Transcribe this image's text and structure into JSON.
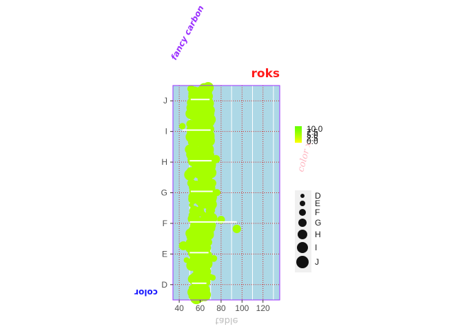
{
  "chart_data": {
    "type": "scatter",
    "title": "roks",
    "xlabel": "table",
    "ylabel": "color",
    "top_label": "fancy carbon",
    "x_ticks": [
      "40",
      "60",
      "80",
      "100",
      "120"
    ],
    "x_tick_values": [
      40,
      60,
      80,
      100,
      120
    ],
    "xlim": [
      34,
      136
    ],
    "categories": [
      "D",
      "E",
      "F",
      "G",
      "H",
      "I",
      "J"
    ],
    "grid": true,
    "panel_background": "#add8e6",
    "panel_border": "#9b30ff",
    "point_color": "#a6ff00",
    "series": [
      {
        "category": "D",
        "min": 52,
        "max": 66,
        "median": 57,
        "outliers": [
          70,
          72,
          68
        ],
        "range_segments": [
          [
            52,
            66
          ]
        ]
      },
      {
        "category": "E",
        "min": 50,
        "max": 68,
        "median": 57,
        "outliers": [
          44,
          47,
          73
        ],
        "range_segments": [
          [
            50,
            68
          ]
        ]
      },
      {
        "category": "F",
        "min": 50,
        "max": 72,
        "median": 57,
        "outliers": [
          80,
          95
        ],
        "range_segments": [
          [
            50,
            95
          ]
        ]
      },
      {
        "category": "G",
        "min": 51,
        "max": 72,
        "median": 57,
        "outliers": [
          76
        ],
        "range_segments": [
          [
            51,
            72
          ]
        ]
      },
      {
        "category": "H",
        "min": 50,
        "max": 71,
        "median": 57,
        "outliers": [
          75
        ],
        "range_segments": [
          [
            50,
            71
          ]
        ]
      },
      {
        "category": "I",
        "min": 50,
        "max": 70,
        "median": 57,
        "outliers": [
          43
        ],
        "range_segments": [
          [
            43,
            70
          ]
        ]
      },
      {
        "category": "J",
        "min": 51,
        "max": 69,
        "median": 57,
        "outliers": [],
        "range_segments": [
          [
            51,
            69
          ]
        ]
      }
    ],
    "legend_color": {
      "title": "color  x",
      "labels": [
        "10.0",
        "7.5",
        "5.0",
        "2.5",
        "0.0"
      ],
      "colors": [
        "#66ff00",
        "#7fff00",
        "#a6ff00",
        "#ccff00",
        "#ffff00"
      ]
    },
    "legend_size": {
      "labels": [
        "D",
        "E",
        "F",
        "G",
        "H",
        "I",
        "J"
      ],
      "sizes": [
        3,
        4,
        5,
        6,
        7,
        8,
        9
      ]
    }
  }
}
